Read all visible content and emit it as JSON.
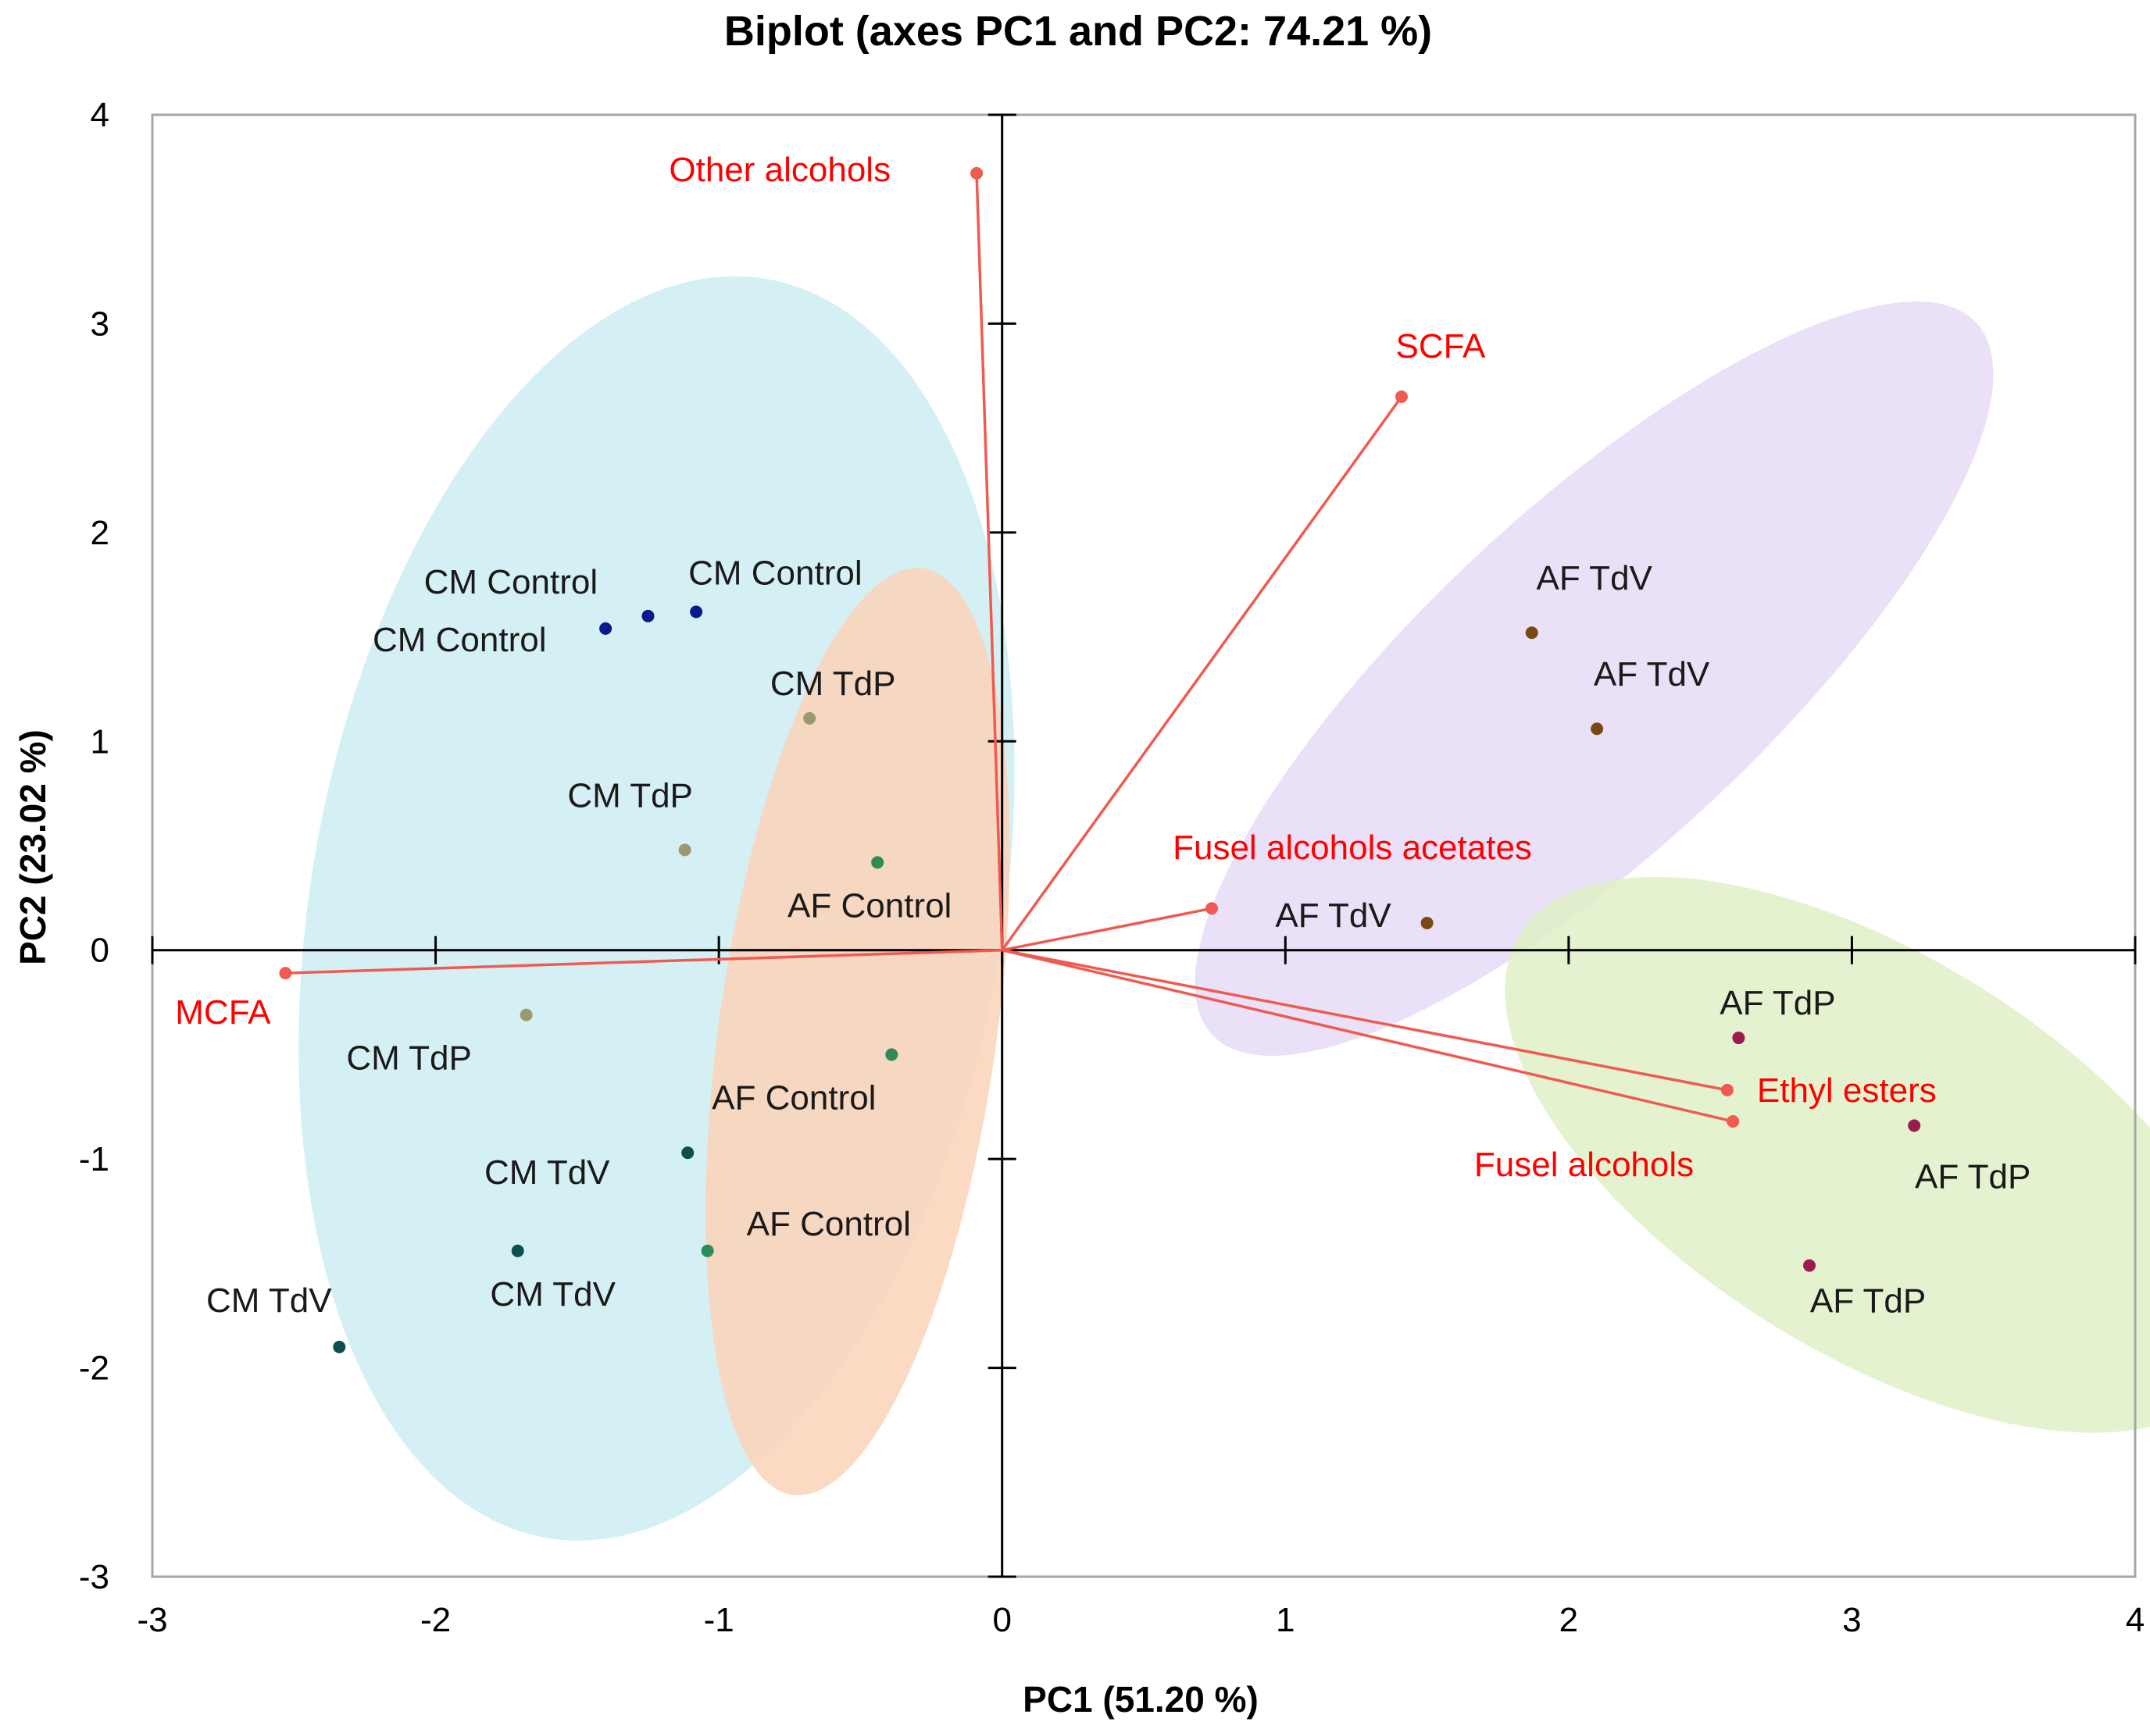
{
  "chart_data": {
    "type": "scatter",
    "title": "Biplot (axes PC1 and PC2: 74.21 %)",
    "xlabel": "PC1 (51.20 %)",
    "ylabel": "PC2 (23.02 %)",
    "xlim": [
      -3,
      4
    ],
    "ylim": [
      -3,
      4
    ],
    "xticks": [
      "-3",
      "-2",
      "-1",
      "0",
      "1",
      "2",
      "3",
      "4"
    ],
    "yticks": [
      "4",
      "3",
      "2",
      "1",
      "0",
      "-1",
      "-2",
      "-3"
    ],
    "grid": false,
    "observations": [
      {
        "label": "CM Control",
        "x": -1.4,
        "y": 1.54,
        "color": "#0a1a8c"
      },
      {
        "label": "CM Control",
        "x": -1.25,
        "y": 1.6,
        "color": "#0a1a8c"
      },
      {
        "label": "CM Control",
        "x": -1.08,
        "y": 1.62,
        "color": "#0a1a8c"
      },
      {
        "label": "CM TdP",
        "x": -0.68,
        "y": 1.11,
        "color": "#9a9a70"
      },
      {
        "label": "CM TdP",
        "x": -1.12,
        "y": 0.48,
        "color": "#9a9a70"
      },
      {
        "label": "CM TdP",
        "x": -1.68,
        "y": -0.31,
        "color": "#9a9a70"
      },
      {
        "label": "AF Control",
        "x": -0.44,
        "y": 0.42,
        "color": "#2e8b57"
      },
      {
        "label": "AF Control",
        "x": -0.39,
        "y": -0.5,
        "color": "#2e8b57"
      },
      {
        "label": "AF Control",
        "x": -1.04,
        "y": -1.44,
        "color": "#2e8b57"
      },
      {
        "label": "CM TdV",
        "x": -1.11,
        "y": -0.97,
        "color": "#0b4f4f"
      },
      {
        "label": "CM TdV",
        "x": -1.71,
        "y": -1.44,
        "color": "#0b4f4f"
      },
      {
        "label": "CM TdV",
        "x": -2.34,
        "y": -1.9,
        "color": "#0b4f4f"
      },
      {
        "label": "AF TdV",
        "x": 1.87,
        "y": 1.52,
        "color": "#7a4a14"
      },
      {
        "label": "AF TdV",
        "x": 2.1,
        "y": 1.06,
        "color": "#7a4a14"
      },
      {
        "label": "AF TdV",
        "x": 1.5,
        "y": 0.13,
        "color": "#7a4a14"
      },
      {
        "label": "AF TdP",
        "x": 2.6,
        "y": -0.42,
        "color": "#9b1b4f"
      },
      {
        "label": "AF TdP",
        "x": 3.22,
        "y": -0.84,
        "color": "#9b1b4f"
      },
      {
        "label": "AF TdP",
        "x": 2.85,
        "y": -1.51,
        "color": "#9b1b4f"
      }
    ],
    "variables": [
      {
        "label": "Other alcohols",
        "x": -0.09,
        "y": 3.72
      },
      {
        "label": "SCFA",
        "x": 1.41,
        "y": 2.65
      },
      {
        "label": "Fusel alcohols acetates",
        "x": 0.74,
        "y": 0.2
      },
      {
        "label": "MCFA",
        "x": -2.53,
        "y": -0.11
      },
      {
        "label": "Ethyl esters",
        "x": 2.56,
        "y": -0.67
      },
      {
        "label": "Fusel alcohols",
        "x": 2.58,
        "y": -0.82
      }
    ],
    "groups": [
      {
        "name": "CM",
        "color": "#b3e3eb"
      },
      {
        "name": "AF Control",
        "color": "#fad2b8"
      },
      {
        "name": "AF TdV",
        "color": "#e6dcf7"
      },
      {
        "name": "AF TdP",
        "color": "#dff0c7"
      }
    ],
    "vector_color": "#f05a50"
  }
}
